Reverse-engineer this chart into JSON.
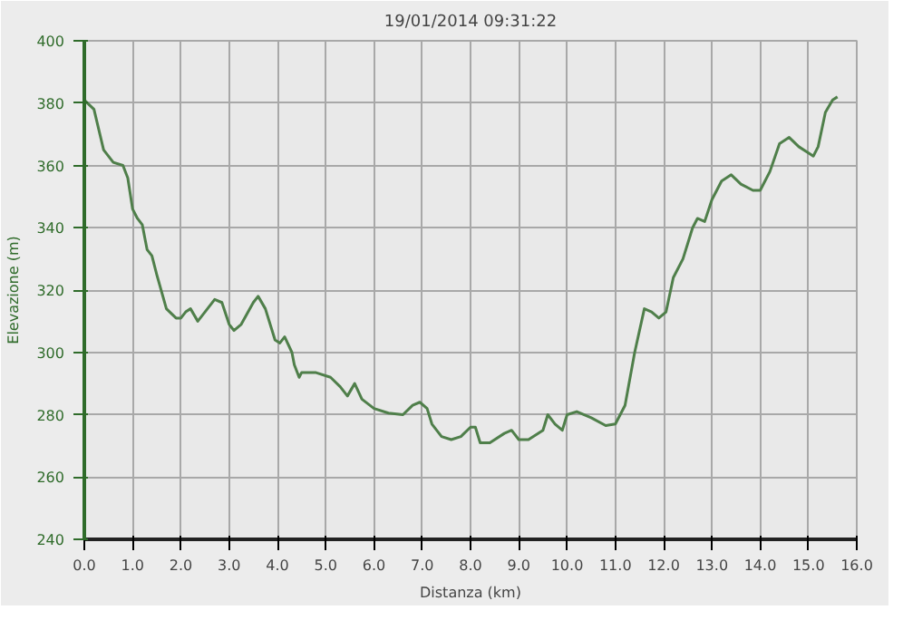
{
  "chart_data": {
    "type": "line",
    "title": "19/01/2014 09:31:22",
    "xlabel": "Distanza (km)",
    "ylabel": "Elevazione (m)",
    "xlim": [
      0,
      16
    ],
    "ylim": [
      240,
      400
    ],
    "xticks": [
      {
        "value": 0,
        "label": "0.0"
      },
      {
        "value": 1,
        "label": "1.0"
      },
      {
        "value": 2,
        "label": "2.0"
      },
      {
        "value": 3,
        "label": "3.0"
      },
      {
        "value": 4,
        "label": "4.0"
      },
      {
        "value": 5,
        "label": "5.0"
      },
      {
        "value": 6,
        "label": "6.0"
      },
      {
        "value": 7,
        "label": "7.0"
      },
      {
        "value": 8,
        "label": "8.0"
      },
      {
        "value": 9,
        "label": "9.0"
      },
      {
        "value": 10,
        "label": "10.0"
      },
      {
        "value": 11,
        "label": "11.0"
      },
      {
        "value": 12,
        "label": "12.0"
      },
      {
        "value": 13,
        "label": "13.0"
      },
      {
        "value": 14,
        "label": "14.0"
      },
      {
        "value": 15,
        "label": "15.0"
      },
      {
        "value": 16,
        "label": "16.0"
      }
    ],
    "yticks": [
      240,
      260,
      280,
      300,
      320,
      340,
      360,
      380,
      400
    ],
    "grid": true,
    "marker": "none",
    "line_style": "solid",
    "series": [
      {
        "color": "#4f7f4a",
        "x": [
          0,
          0.2,
          0.4,
          0.6,
          0.8,
          0.9,
          1.0,
          1.1,
          1.2,
          1.3,
          1.4,
          1.5,
          1.7,
          1.9,
          2.0,
          2.1,
          2.2,
          2.35,
          2.5,
          2.7,
          2.85,
          3.0,
          3.1,
          3.25,
          3.5,
          3.6,
          3.75,
          3.95,
          4.05,
          4.15,
          4.3,
          4.35,
          4.45,
          4.5,
          4.8,
          5.1,
          5.3,
          5.45,
          5.6,
          5.75,
          6.0,
          6.3,
          6.6,
          6.8,
          6.95,
          7.1,
          7.2,
          7.4,
          7.6,
          7.8,
          8.0,
          8.1,
          8.2,
          8.4,
          8.7,
          8.85,
          9.0,
          9.2,
          9.5,
          9.6,
          9.75,
          9.9,
          10.0,
          10.2,
          10.5,
          10.8,
          11.0,
          11.2,
          11.4,
          11.6,
          11.75,
          11.9,
          12.05,
          12.2,
          12.4,
          12.6,
          12.7,
          12.85,
          13.0,
          13.2,
          13.4,
          13.6,
          13.85,
          14.0,
          14.2,
          14.4,
          14.6,
          14.8,
          15.0,
          15.1,
          15.2,
          15.35,
          15.5,
          15.6
        ],
        "values": [
          381,
          378,
          365,
          361,
          360,
          356,
          346,
          343,
          341,
          333,
          331,
          325,
          314,
          311,
          311,
          313,
          314,
          310,
          313,
          317,
          316,
          309,
          307,
          309,
          316,
          318,
          314,
          304,
          303,
          305,
          300,
          296,
          292,
          293.5,
          293.5,
          292,
          289,
          286,
          290,
          285,
          282,
          280.5,
          280,
          283,
          284,
          282,
          277,
          273,
          272,
          273,
          276,
          276,
          271,
          271,
          274,
          275,
          272,
          272,
          275,
          280,
          277,
          275,
          280,
          281,
          279,
          276.5,
          277,
          283,
          300,
          314,
          313,
          311,
          313,
          324,
          330,
          340,
          343,
          342,
          349,
          355,
          357,
          354,
          352,
          352,
          358,
          367,
          369,
          366,
          364,
          363,
          366,
          377,
          381,
          382
        ]
      }
    ]
  }
}
